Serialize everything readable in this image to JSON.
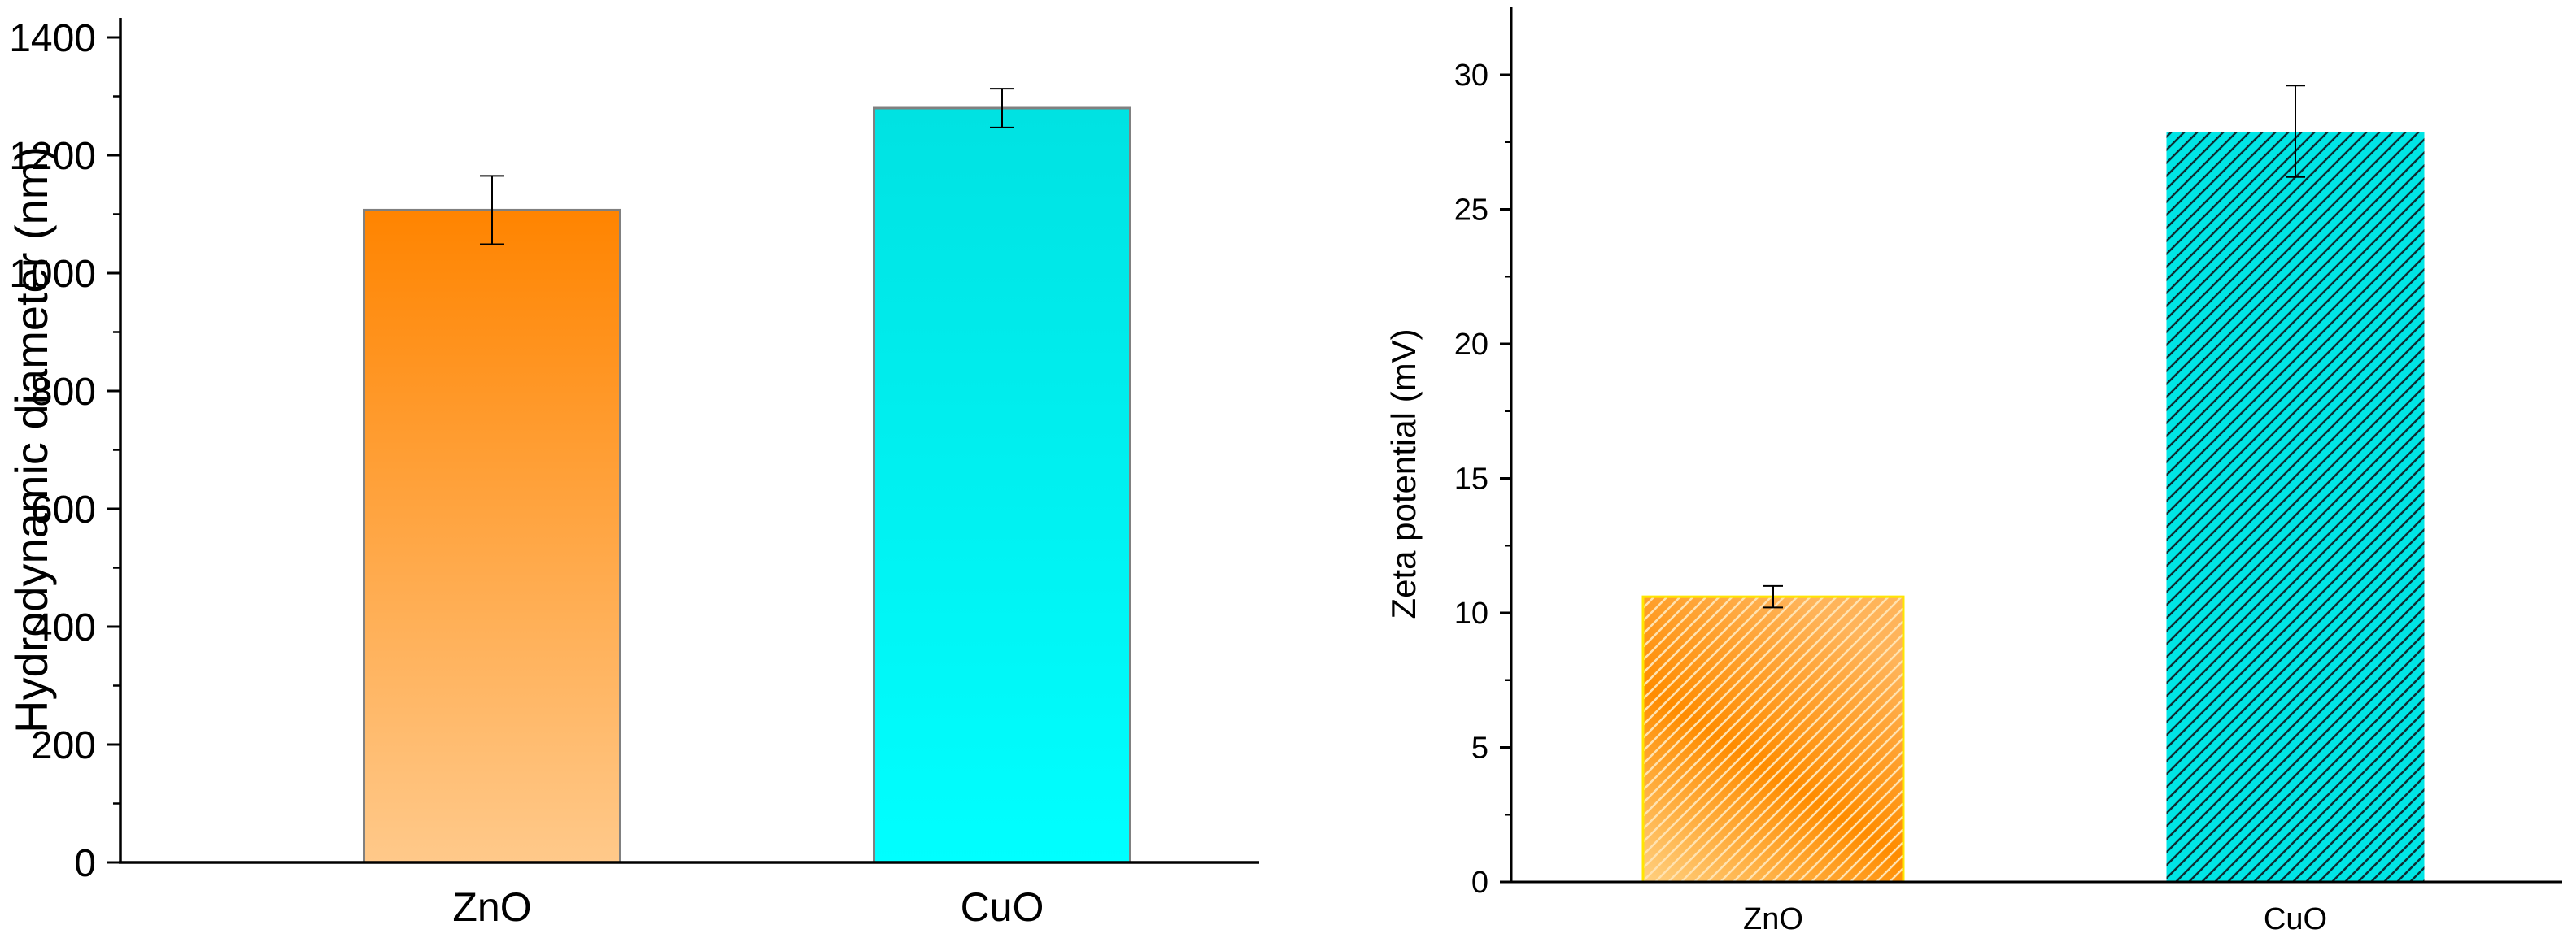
{
  "chart_data": [
    {
      "type": "bar",
      "title": "",
      "xlabel": "",
      "ylabel": "Hydrodynamic diameter (nm)",
      "categories": [
        "ZnO",
        "CuO"
      ],
      "values": [
        1107,
        1280
      ],
      "errors": [
        58,
        33
      ],
      "ylim": [
        0,
        1400
      ],
      "yticks": [
        0,
        200,
        400,
        600,
        800,
        1000,
        1200,
        1400
      ],
      "colors": [
        "#ff8400",
        "#00e6e6"
      ],
      "grid": false
    },
    {
      "type": "bar",
      "title": "",
      "xlabel": "",
      "ylabel": "Zeta potential (mV)",
      "categories": [
        "ZnO",
        "CuO"
      ],
      "values": [
        10.6,
        27.9
      ],
      "errors": [
        0.4,
        1.7
      ],
      "ylim": [
        0,
        32.5
      ],
      "yticks": [
        0,
        5,
        10,
        15,
        20,
        25,
        30
      ],
      "colors": [
        "#ff8c00",
        "#00e5e5"
      ],
      "grid": false
    }
  ]
}
